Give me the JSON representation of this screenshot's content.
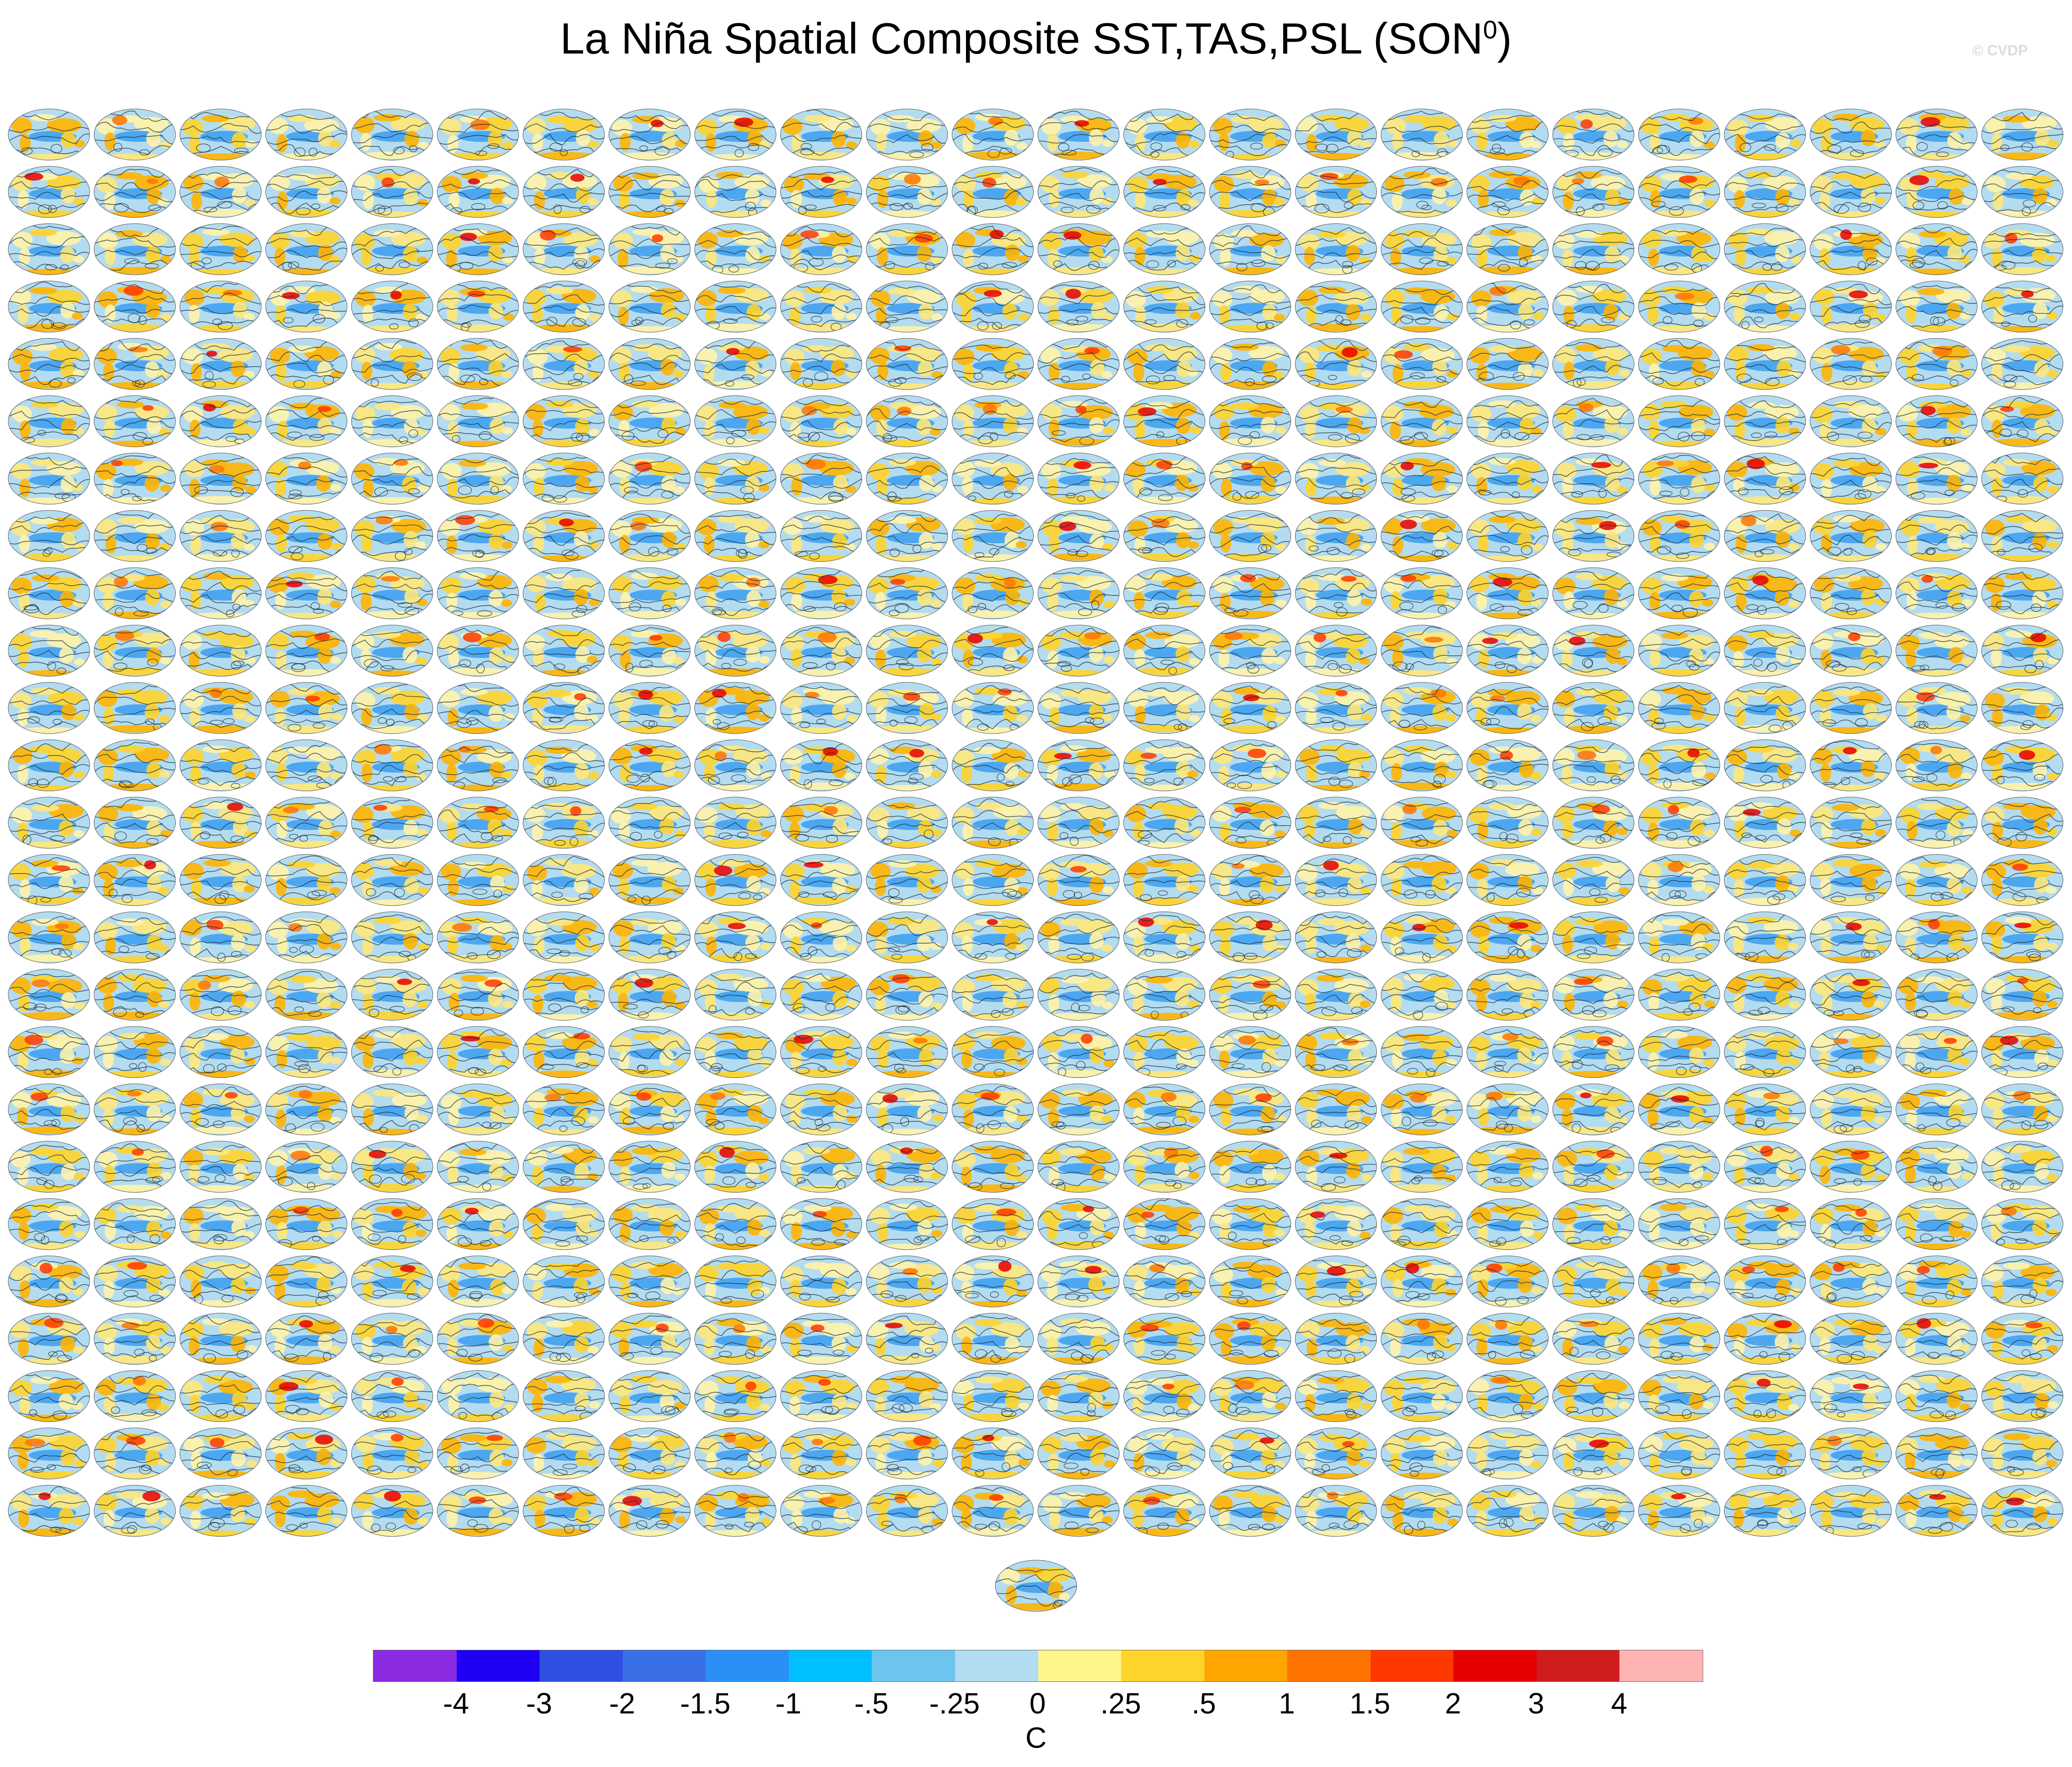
{
  "figure": {
    "title": "La Niña Spatial Composite SST,TAS,PSL (SON",
    "title_superscript": "0",
    "title_close": ")",
    "copyright": "© CVDP"
  },
  "panels": {
    "rows": 25,
    "columns": 24,
    "extra_panels": 1,
    "map_projection": "global-ellipse",
    "ocean_base_color": "#b4dcf0"
  },
  "colorbar": {
    "colors": [
      "#8a2be2",
      "#2000f5",
      "#2e4fe0",
      "#3a70e6",
      "#2a90f5",
      "#00bfff",
      "#6cc4ef",
      "#b2dcf2",
      "#fff68a",
      "#ffd42a",
      "#ffa500",
      "#ff7400",
      "#ff3800",
      "#e60000",
      "#d01c1c",
      "#ffb4b4"
    ],
    "tick_labels": [
      "-4",
      "-3",
      "-2",
      "-1.5",
      "-1",
      "-.5",
      "-.25",
      "0",
      ".25",
      ".5",
      "1",
      "1.5",
      "2",
      "3",
      "4"
    ],
    "units": "C"
  }
}
